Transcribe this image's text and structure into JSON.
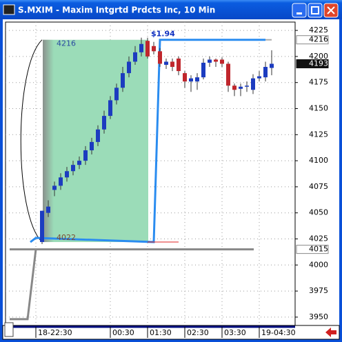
{
  "title": "S.MXIM - Maxim Intgrtd Prdcts Inc, 10 Min",
  "chart_data": {
    "type": "candlestick",
    "categories": [
      "18-22:30",
      null,
      null,
      null,
      null,
      null,
      null,
      null,
      null,
      null,
      null,
      null,
      "00:30",
      null,
      null,
      null,
      null,
      null,
      "01:30",
      null,
      null,
      null,
      null,
      null,
      "02:30",
      null,
      null,
      null,
      null,
      null,
      "03:30",
      null,
      null,
      null,
      null,
      null,
      "19-04:30",
      null,
      null
    ],
    "open": [
      null,
      4022,
      4050,
      4072,
      4076,
      4084,
      4090,
      4096,
      4100,
      4110,
      4118,
      4130,
      4143,
      4158,
      4170,
      4184,
      4195,
      4204,
      4215,
      4210,
      4205,
      4192,
      4195,
      4198,
      4184,
      4176,
      4176,
      4180,
      4194,
      4197,
      4197,
      4193,
      4172,
      4169,
      4171,
      4168,
      4179,
      4180,
      4189
    ],
    "high": [
      null,
      4052,
      4062,
      4080,
      4088,
      4094,
      4100,
      4104,
      4114,
      4122,
      4134,
      4148,
      4162,
      4174,
      4190,
      4200,
      4210,
      4218,
      4218,
      4214,
      4208,
      4198,
      4198,
      4200,
      4186,
      4182,
      4184,
      4198,
      4200,
      4198,
      4199,
      4195,
      4174,
      4174,
      4176,
      4183,
      4186,
      4195,
      4206
    ],
    "low": [
      null,
      4020,
      4046,
      4066,
      4072,
      4080,
      4086,
      4092,
      4096,
      4106,
      4114,
      4126,
      4140,
      4154,
      4166,
      4180,
      4192,
      4200,
      4198,
      4202,
      4190,
      4188,
      4186,
      4182,
      4170,
      4166,
      4168,
      4178,
      4190,
      4190,
      4190,
      4166,
      4162,
      4162,
      4166,
      4164,
      4176,
      4176,
      4182
    ],
    "close": [
      null,
      4052,
      4056,
      4076,
      4084,
      4090,
      4096,
      4100,
      4110,
      4118,
      4130,
      4143,
      4158,
      4170,
      4184,
      4195,
      4204,
      4212,
      4200,
      4205,
      4193,
      4195,
      4190,
      4186,
      4176,
      4179,
      4180,
      4194,
      4197,
      4195,
      4193,
      4172,
      4168,
      4171,
      4172,
      4179,
      4181,
      4190,
      4193
    ],
    "up_color": "#1c3cc0",
    "down_color": "#c0262c",
    "ylim": [
      3942,
      4233
    ],
    "yticks": [
      3950,
      3975,
      4000,
      4025,
      4050,
      4075,
      4100,
      4125,
      4150,
      4175,
      4200,
      4225
    ],
    "grid": true,
    "price_markers": [
      4216,
      4193,
      4015
    ],
    "range_box": {
      "high": 4216,
      "low": 4022,
      "color": "#9bdcb8"
    },
    "measure_label": "$1.94"
  }
}
